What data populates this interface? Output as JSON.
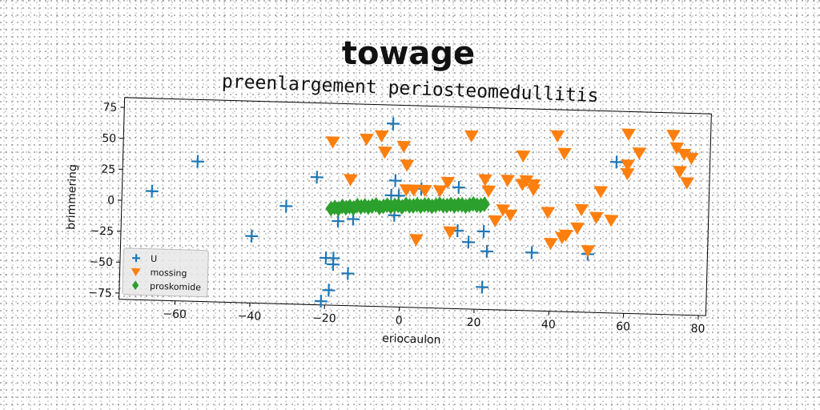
{
  "chart_data": {
    "type": "scatter",
    "title": "towage",
    "subtitle": "preenlargement periosteomedullitis",
    "xlabel": "eriocaulon",
    "ylabel": "brimmering",
    "xlim": [
      -75,
      82
    ],
    "ylim": [
      -80,
      83
    ],
    "xticks": [
      -60,
      -40,
      -20,
      0,
      20,
      40,
      60,
      80
    ],
    "yticks": [
      -75,
      -50,
      -25,
      0,
      25,
      50,
      75
    ],
    "xtick_labels": [
      "−60",
      "−40",
      "−20",
      "0",
      "20",
      "40",
      "60",
      "80"
    ],
    "ytick_labels": [
      "−75",
      "−50",
      "−25",
      "0",
      "25",
      "50",
      "75"
    ],
    "grid": false,
    "legend_position": "lower-left",
    "series": [
      {
        "name": "U",
        "marker": "plus",
        "color": "#1f77b4",
        "points": [
          [
            -67,
            8
          ],
          [
            -55,
            33
          ],
          [
            -40,
            -26
          ],
          [
            -31,
            -1
          ],
          [
            -23,
            23
          ],
          [
            -21,
            -77
          ],
          [
            -20,
            -42
          ],
          [
            -19,
            -68
          ],
          [
            -18,
            -42
          ],
          [
            -18,
            -47
          ],
          [
            -17,
            -12
          ],
          [
            -14,
            -54
          ],
          [
            -13,
            -10
          ],
          [
            -3,
            68
          ],
          [
            -3,
            10
          ],
          [
            -2,
            22
          ],
          [
            -2,
            -6
          ],
          [
            -1,
            10
          ],
          [
            5,
            16
          ],
          [
            15,
            18
          ],
          [
            15,
            -17
          ],
          [
            18,
            -26
          ],
          [
            22,
            -62
          ],
          [
            22,
            -17
          ],
          [
            23,
            -33
          ],
          [
            35,
            -33
          ],
          [
            50,
            -33
          ],
          [
            57,
            42
          ]
        ]
      },
      {
        "name": "mossing",
        "marker": "triangle-down",
        "color": "#ff7f0e",
        "points": [
          [
            -19,
            52
          ],
          [
            -14,
            22
          ],
          [
            -10,
            55
          ],
          [
            -6,
            58
          ],
          [
            -5,
            45
          ],
          [
            0,
            50
          ],
          [
            1,
            35
          ],
          [
            1,
            15
          ],
          [
            3,
            15
          ],
          [
            4,
            -25
          ],
          [
            6,
            15
          ],
          [
            10,
            15
          ],
          [
            12,
            22
          ],
          [
            13,
            -18
          ],
          [
            18,
            60
          ],
          [
            22,
            25
          ],
          [
            23,
            16
          ],
          [
            25,
            -8
          ],
          [
            27,
            1
          ],
          [
            28,
            25
          ],
          [
            29,
            -3
          ],
          [
            32,
            22
          ],
          [
            32,
            45
          ],
          [
            33,
            25
          ],
          [
            35,
            22
          ],
          [
            35,
            18
          ],
          [
            39,
            0
          ],
          [
            41,
            62
          ],
          [
            40,
            -25
          ],
          [
            43,
            48
          ],
          [
            43,
            -20
          ],
          [
            44,
            -18
          ],
          [
            47,
            -12
          ],
          [
            48,
            3
          ],
          [
            50,
            -30
          ],
          [
            52,
            -3
          ],
          [
            53,
            18
          ],
          [
            56,
            -5
          ],
          [
            60,
            40
          ],
          [
            60,
            33
          ],
          [
            60,
            65
          ],
          [
            63,
            50
          ],
          [
            72,
            65
          ],
          [
            73,
            55
          ],
          [
            74,
            36
          ],
          [
            75,
            50
          ],
          [
            76,
            27
          ],
          [
            77,
            47
          ]
        ]
      },
      {
        "name": "proskomide",
        "marker": "diamond",
        "color": "#2ca02c",
        "x_range": [
          -19,
          22
        ],
        "y_range": [
          -5,
          5
        ],
        "points": [
          [
            -19,
            -2
          ],
          [
            -18,
            -1
          ],
          [
            -17,
            -2
          ],
          [
            -16,
            0
          ],
          [
            -15,
            -1
          ],
          [
            -14,
            0
          ],
          [
            -13,
            -1
          ],
          [
            -12,
            1
          ],
          [
            -11,
            0
          ],
          [
            -10,
            1
          ],
          [
            -9,
            0
          ],
          [
            -8,
            1
          ],
          [
            -7,
            2
          ],
          [
            -6,
            0
          ],
          [
            -5,
            1
          ],
          [
            -4,
            2
          ],
          [
            -3,
            1
          ],
          [
            -2,
            2
          ],
          [
            -1,
            2
          ],
          [
            0,
            1
          ],
          [
            1,
            3
          ],
          [
            2,
            2
          ],
          [
            3,
            2
          ],
          [
            4,
            3
          ],
          [
            5,
            2
          ],
          [
            6,
            3
          ],
          [
            7,
            3
          ],
          [
            8,
            2
          ],
          [
            9,
            3
          ],
          [
            10,
            4
          ],
          [
            11,
            3
          ],
          [
            12,
            3
          ],
          [
            13,
            4
          ],
          [
            14,
            3
          ],
          [
            15,
            4
          ],
          [
            16,
            4
          ],
          [
            17,
            3
          ],
          [
            18,
            4
          ],
          [
            19,
            5
          ],
          [
            20,
            4
          ],
          [
            21,
            4
          ],
          [
            22,
            5
          ]
        ]
      }
    ]
  }
}
